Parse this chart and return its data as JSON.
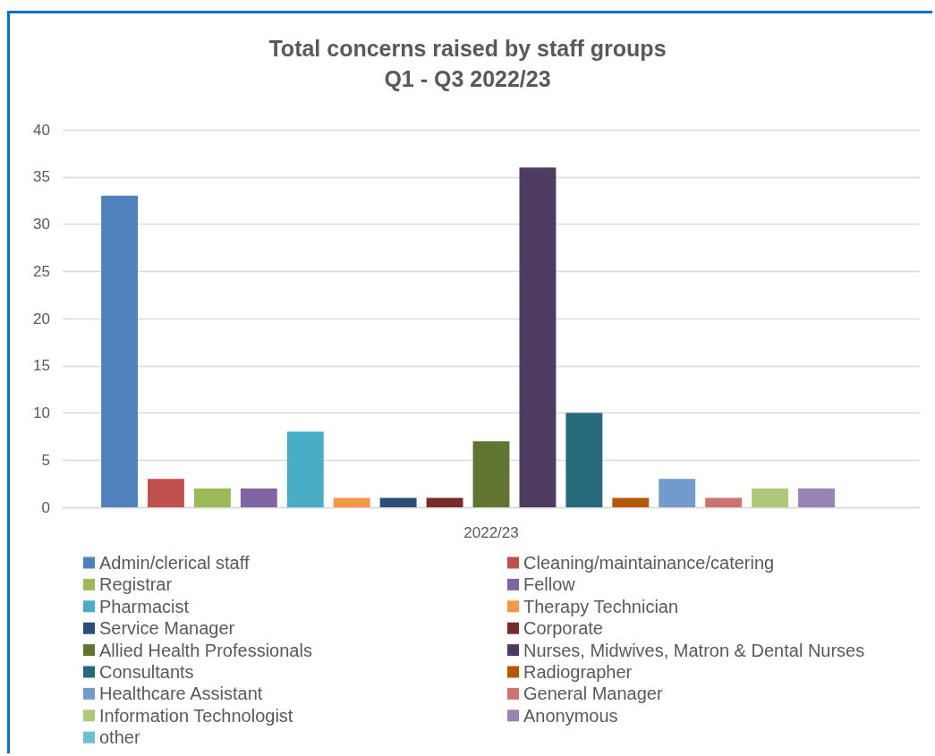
{
  "chart_data": {
    "type": "bar",
    "title": "Total concerns raised by staff groups",
    "subtitle": "Q1 - Q3 2022/23",
    "categories": [
      "2022/23"
    ],
    "series": [
      {
        "name": "Admin/clerical staff",
        "color": "#4f81bd",
        "values": [
          33
        ]
      },
      {
        "name": "Cleaning/maintainance/catering",
        "color": "#c0504d",
        "values": [
          3
        ]
      },
      {
        "name": "Registrar",
        "color": "#9bbb59",
        "values": [
          2
        ]
      },
      {
        "name": "Fellow",
        "color": "#8064a2",
        "values": [
          2
        ]
      },
      {
        "name": "Pharmacist",
        "color": "#4bacc6",
        "values": [
          8
        ]
      },
      {
        "name": "Therapy Technician",
        "color": "#f79646",
        "values": [
          1
        ]
      },
      {
        "name": "Service Manager",
        "color": "#2c4d75",
        "values": [
          1
        ]
      },
      {
        "name": "Corporate",
        "color": "#772c2a",
        "values": [
          1
        ]
      },
      {
        "name": "Allied Health Professionals",
        "color": "#5f7530",
        "values": [
          7
        ]
      },
      {
        "name": "Nurses, Midwives, Matron & Dental Nurses",
        "color": "#4d3b62",
        "values": [
          36
        ]
      },
      {
        "name": "Consultants",
        "color": "#276a7c",
        "values": [
          10
        ]
      },
      {
        "name": "Radiographer",
        "color": "#b65708",
        "values": [
          1
        ]
      },
      {
        "name": "Healthcare Assistant",
        "color": "#729aca",
        "values": [
          3
        ]
      },
      {
        "name": "General Manager",
        "color": "#cd7371",
        "values": [
          1
        ]
      },
      {
        "name": "Information Technologist",
        "color": "#afc97a",
        "values": [
          2
        ]
      },
      {
        "name": "Anonymous",
        "color": "#9983b5",
        "values": [
          2
        ]
      },
      {
        "name": "other",
        "color": "#6fbdd1",
        "values": [
          0
        ]
      }
    ],
    "ylim": [
      0,
      40
    ],
    "yticks": [
      0,
      5,
      10,
      15,
      20,
      25,
      30,
      35,
      40
    ],
    "grid": "y",
    "legend": "bottom"
  }
}
